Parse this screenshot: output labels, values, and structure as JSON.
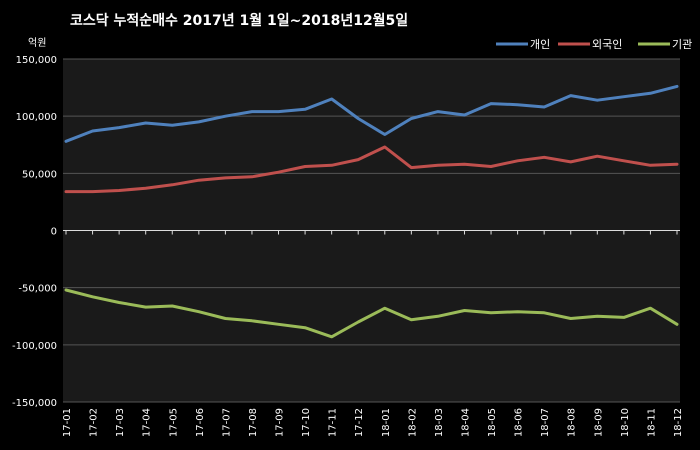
{
  "chart_data": {
    "type": "line",
    "title": "코스닥 누적순매수 2017년 1월 1일~2018년12월5일",
    "ylabel": "억원",
    "ylim": [
      -150000,
      150000
    ],
    "yticks": [
      "150,000",
      "100,000",
      "50,000",
      "0",
      "-50,000",
      "-100,000",
      "-150,000"
    ],
    "ytick_values": [
      150000,
      100000,
      50000,
      0,
      -50000,
      -100000,
      -150000
    ],
    "categories": [
      "17-01",
      "17-02",
      "17-03",
      "17-04",
      "17-05",
      "17-06",
      "17-07",
      "17-08",
      "17-09",
      "17-10",
      "17-11",
      "17-12",
      "18-01",
      "18-02",
      "18-03",
      "18-04",
      "18-05",
      "18-06",
      "18-07",
      "18-08",
      "18-09",
      "18-10",
      "18-11",
      "18-12"
    ],
    "grid": true,
    "legend_position": "top-right",
    "series": [
      {
        "name": "개인",
        "color": "#4f81bd",
        "values": [
          78000,
          87000,
          90000,
          94000,
          92000,
          95000,
          100000,
          104000,
          104000,
          106000,
          115000,
          98000,
          84000,
          98000,
          104000,
          101000,
          111000,
          110000,
          108000,
          118000,
          114000,
          117000,
          120000,
          126000
        ]
      },
      {
        "name": "외국인",
        "color": "#c0504d",
        "values": [
          34000,
          34000,
          35000,
          37000,
          40000,
          44000,
          46000,
          47000,
          51000,
          56000,
          57000,
          62000,
          73000,
          55000,
          57000,
          58000,
          56000,
          61000,
          64000,
          60000,
          65000,
          61000,
          57000,
          58000
        ]
      },
      {
        "name": "기관",
        "color": "#9bbb59",
        "values": [
          -52000,
          -58000,
          -63000,
          -67000,
          -66000,
          -71000,
          -77000,
          -79000,
          -82000,
          -85000,
          -93000,
          -80000,
          -68000,
          -78000,
          -75000,
          -70000,
          -72000,
          -71000,
          -72000,
          -77000,
          -75000,
          -76000,
          -68000,
          -82000
        ]
      }
    ]
  }
}
